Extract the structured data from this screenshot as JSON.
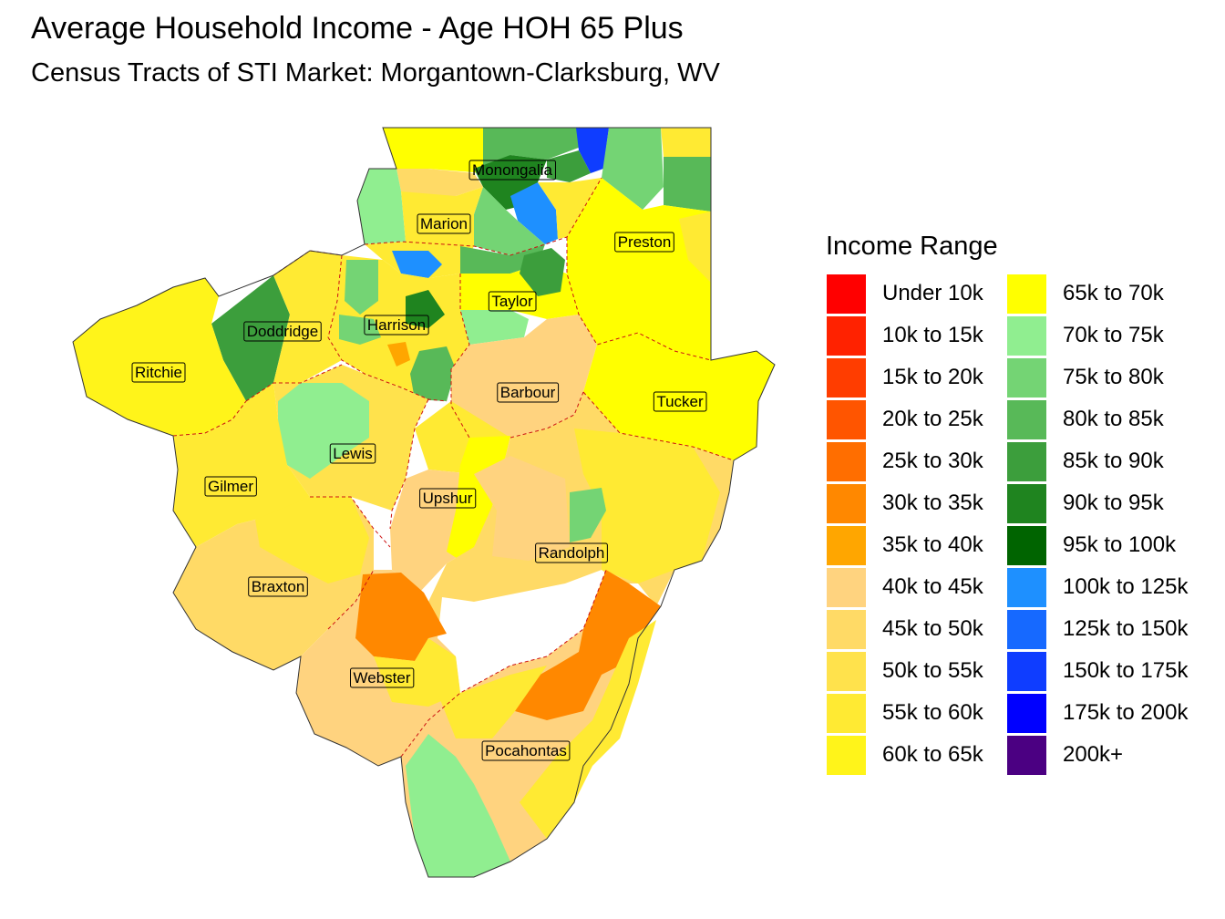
{
  "title": "Average Household Income - Age HOH 65 Plus",
  "subtitle": "Census Tracts of STI Market: Morgantown-Clarksburg, WV",
  "legend": {
    "title": "Income Range",
    "column1": [
      {
        "label": "Under 10k",
        "color": "#ff0000"
      },
      {
        "label": "10k to 15k",
        "color": "#ff2200"
      },
      {
        "label": "15k to 20k",
        "color": "#ff3d00"
      },
      {
        "label": "20k to 25k",
        "color": "#ff5500"
      },
      {
        "label": "25k to 30k",
        "color": "#ff6e00"
      },
      {
        "label": "30k to 35k",
        "color": "#ff8800"
      },
      {
        "label": "35k to 40k",
        "color": "#ffa600"
      },
      {
        "label": "40k to 45k",
        "color": "#ffd37f"
      },
      {
        "label": "45k to 50k",
        "color": "#ffda66"
      },
      {
        "label": "50k to 55k",
        "color": "#ffe24c"
      },
      {
        "label": "55k to 60k",
        "color": "#ffea33"
      },
      {
        "label": "60k to 65k",
        "color": "#fff41a"
      }
    ],
    "column2": [
      {
        "label": "65k to 70k",
        "color": "#ffff00"
      },
      {
        "label": "70k to 75k",
        "color": "#90ee90"
      },
      {
        "label": "75k to 80k",
        "color": "#74d474"
      },
      {
        "label": "80k to 85k",
        "color": "#58b958"
      },
      {
        "label": "85k to 90k",
        "color": "#3c9e3c"
      },
      {
        "label": "90k to 95k",
        "color": "#1f841f"
      },
      {
        "label": "95k to 100k",
        "color": "#006400"
      },
      {
        "label": "100k to 125k",
        "color": "#1e90ff"
      },
      {
        "label": "125k to 150k",
        "color": "#1669ff"
      },
      {
        "label": "150k to 175k",
        "color": "#0f3dff"
      },
      {
        "label": "175k to 200k",
        "color": "#0000ff"
      },
      {
        "label": "200k+",
        "color": "#4b0082"
      }
    ]
  },
  "counties": [
    {
      "name": "Monongalia"
    },
    {
      "name": "Marion"
    },
    {
      "name": "Preston"
    },
    {
      "name": "Taylor"
    },
    {
      "name": "Harrison"
    },
    {
      "name": "Doddridge"
    },
    {
      "name": "Ritchie"
    },
    {
      "name": "Barbour"
    },
    {
      "name": "Tucker"
    },
    {
      "name": "Lewis"
    },
    {
      "name": "Gilmer"
    },
    {
      "name": "Upshur"
    },
    {
      "name": "Randolph"
    },
    {
      "name": "Braxton"
    },
    {
      "name": "Webster"
    },
    {
      "name": "Pocahontas"
    }
  ]
}
